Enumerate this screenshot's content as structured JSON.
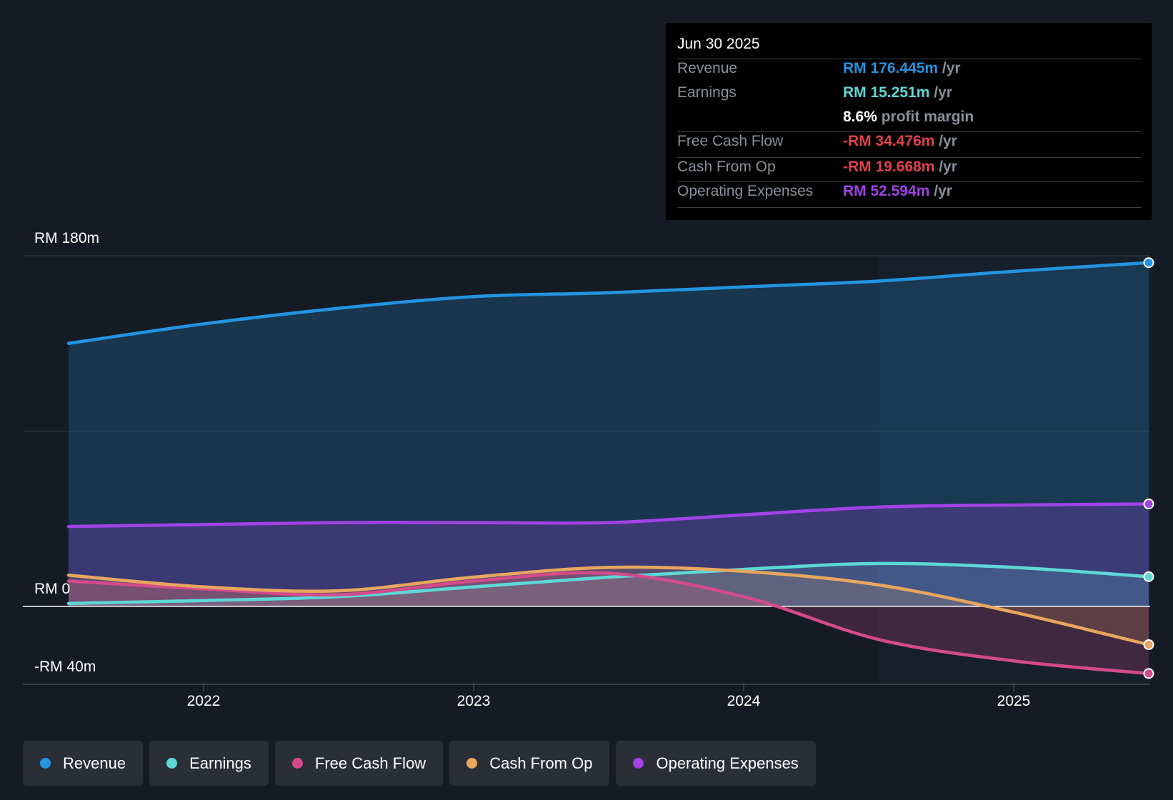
{
  "chart_data": {
    "type": "area",
    "ylim": [
      -40,
      180
    ],
    "y_ticks": [
      {
        "value": 180,
        "label": "RM 180m"
      },
      {
        "value": 0,
        "label": "RM 0"
      },
      {
        "value": -40,
        "label": "-RM 40m"
      }
    ],
    "x_ticks": [
      {
        "value": 2022.0,
        "label": "2022"
      },
      {
        "value": 2023.0,
        "label": "2023"
      },
      {
        "value": 2024.0,
        "label": "2024"
      },
      {
        "value": 2025.0,
        "label": "2025"
      }
    ],
    "xlim": [
      2021.5,
      2025.5
    ],
    "highlight_start": 2024.5,
    "series": [
      {
        "key": "revenue",
        "name": "Revenue",
        "color": "#2394e1",
        "fill_opacity": 0.22,
        "points": [
          [
            2021.5,
            135
          ],
          [
            2022.0,
            145
          ],
          [
            2022.5,
            153
          ],
          [
            2023.0,
            159
          ],
          [
            2023.5,
            161
          ],
          [
            2024.0,
            164
          ],
          [
            2024.5,
            167
          ],
          [
            2025.0,
            172
          ],
          [
            2025.5,
            176.445
          ]
        ]
      },
      {
        "key": "opex",
        "name": "Operating Expenses",
        "color": "#a242e8",
        "fill_opacity": 0.25,
        "points": [
          [
            2021.5,
            41
          ],
          [
            2022.0,
            42
          ],
          [
            2022.5,
            43
          ],
          [
            2023.0,
            43
          ],
          [
            2023.5,
            43
          ],
          [
            2024.0,
            47
          ],
          [
            2024.5,
            51
          ],
          [
            2025.0,
            52
          ],
          [
            2025.5,
            52.594
          ]
        ]
      },
      {
        "key": "earnings",
        "name": "Earnings",
        "color": "#5ed8d6",
        "fill_opacity": 0.18,
        "points": [
          [
            2021.5,
            1.5
          ],
          [
            2022.0,
            3
          ],
          [
            2022.5,
            5
          ],
          [
            2023.0,
            10
          ],
          [
            2023.5,
            15
          ],
          [
            2024.0,
            19
          ],
          [
            2024.5,
            22
          ],
          [
            2025.0,
            20
          ],
          [
            2025.5,
            15.251
          ]
        ]
      },
      {
        "key": "fcf",
        "name": "Free Cash Flow",
        "color": "#d44b8c",
        "fill_opacity": 0.22,
        "points": [
          [
            2021.5,
            13
          ],
          [
            2022.0,
            9
          ],
          [
            2022.5,
            6
          ],
          [
            2023.0,
            13
          ],
          [
            2023.5,
            17
          ],
          [
            2024.0,
            5
          ],
          [
            2024.5,
            -17
          ],
          [
            2025.0,
            -28
          ],
          [
            2025.5,
            -34.476
          ]
        ]
      },
      {
        "key": "cfo",
        "name": "Cash From Op",
        "color": "#e8a65e",
        "fill_opacity": 0.18,
        "points": [
          [
            2021.5,
            16
          ],
          [
            2022.0,
            10
          ],
          [
            2022.5,
            8
          ],
          [
            2023.0,
            15
          ],
          [
            2023.5,
            20
          ],
          [
            2024.0,
            18
          ],
          [
            2024.5,
            11
          ],
          [
            2025.0,
            -3
          ],
          [
            2025.5,
            -19.668
          ]
        ]
      }
    ]
  },
  "tooltip": {
    "date": "Jun 30 2025",
    "revenue_label": "Revenue",
    "revenue_value": "RM 176.445m",
    "revenue_unit": " /yr",
    "earnings_label": "Earnings",
    "earnings_value": "RM 15.251m",
    "earnings_unit": " /yr",
    "margin_value": "8.6%",
    "margin_text": " profit margin",
    "fcf_label": "Free Cash Flow",
    "fcf_value": "-RM 34.476m",
    "fcf_unit": " /yr",
    "cfo_label": "Cash From Op",
    "cfo_value": "-RM 19.668m",
    "cfo_unit": " /yr",
    "opex_label": "Operating Expenses",
    "opex_value": "RM 52.594m",
    "opex_unit": " /yr",
    "colors": {
      "revenue": "#2394e1",
      "earnings": "#5ed8d6",
      "negative": "#e2414d",
      "opex": "#a242e8",
      "margin": "#ffffff"
    }
  },
  "legend": [
    {
      "label": "Revenue",
      "color": "#2394e1"
    },
    {
      "label": "Earnings",
      "color": "#5ed8d6"
    },
    {
      "label": "Free Cash Flow",
      "color": "#d44b8c"
    },
    {
      "label": "Cash From Op",
      "color": "#e8a65e"
    },
    {
      "label": "Operating Expenses",
      "color": "#a242e8"
    }
  ]
}
